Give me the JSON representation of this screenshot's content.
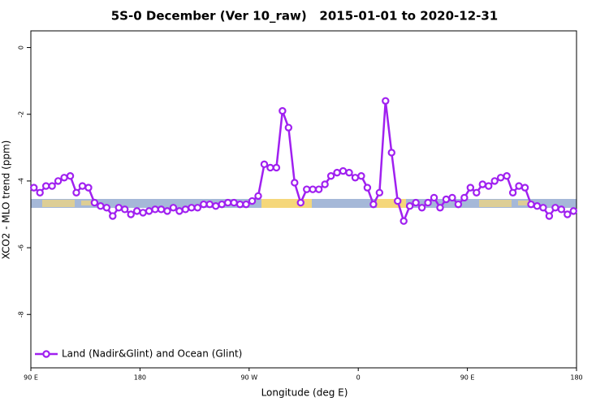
{
  "chart_data": {
    "type": "line",
    "title": "5S-0 December (Ver 10_raw)   2015-01-01 to 2020-12-31",
    "x_label": "Longitude (deg E)",
    "y_label": "XCO2 - MLO trend (ppm)",
    "x": [
      92.5,
      97.5,
      102.5,
      107.5,
      112.5,
      117.5,
      122.5,
      127.5,
      132.5,
      137.5,
      142.5,
      147.5,
      152.5,
      157.5,
      162.5,
      167.5,
      172.5,
      177.5,
      182.5,
      187.5,
      192.5,
      197.5,
      202.5,
      207.5,
      212.5,
      217.5,
      222.5,
      227.5,
      232.5,
      237.5,
      242.5,
      247.5,
      252.5,
      257.5,
      262.5,
      267.5,
      272.5,
      277.5,
      282.5,
      287.5,
      292.5,
      297.5,
      302.5,
      307.5,
      312.5,
      317.5,
      322.5,
      327.5,
      332.5,
      337.5,
      342.5,
      347.5,
      352.5,
      357.5,
      362.5,
      367.5,
      372.5,
      377.5,
      382.5,
      387.5,
      392.5,
      397.5,
      402.5,
      407.5,
      412.5,
      417.5,
      422.5,
      427.5,
      432.5,
      437.5,
      442.5,
      447.5,
      452.5,
      457.5,
      462.5,
      467.5,
      472.5,
      477.5,
      482.5,
      487.5,
      492.5,
      497.5,
      502.5,
      507.5,
      512.5,
      517.5,
      522.5,
      527.5,
      532.5,
      537.5
    ],
    "series": [
      {
        "name": "Land (Nadir&Glint) and Ocean (Glint)",
        "color": "#a020f0",
        "values": [
          -4.2,
          -4.35,
          -4.15,
          -4.15,
          -4.0,
          -3.9,
          -3.85,
          -4.35,
          -4.15,
          -4.2,
          -4.65,
          -4.75,
          -4.8,
          -5.05,
          -4.8,
          -4.85,
          -5.0,
          -4.9,
          -4.95,
          -4.9,
          -4.85,
          -4.85,
          -4.9,
          -4.8,
          -4.9,
          -4.85,
          -4.8,
          -4.8,
          -4.7,
          -4.7,
          -4.75,
          -4.7,
          -4.65,
          -4.65,
          -4.7,
          -4.7,
          -4.6,
          -4.45,
          -3.5,
          -3.6,
          -3.6,
          -1.9,
          -2.4,
          -4.05,
          -4.65,
          -4.25,
          -4.25,
          -4.25,
          -4.1,
          -3.85,
          -3.75,
          -3.7,
          -3.75,
          -3.9,
          -3.85,
          -4.2,
          -4.7,
          -4.35,
          -1.6,
          -3.15,
          -4.6,
          -5.2,
          -4.75,
          -4.65,
          -4.8,
          -4.65,
          -4.5,
          -4.8,
          -4.55,
          -4.5,
          -4.7,
          -4.5,
          -4.2,
          -4.35,
          -4.1,
          -4.15,
          -4.0,
          -3.9,
          -3.85,
          -4.35,
          -4.15,
          -4.2,
          -4.7,
          -4.75,
          -4.8,
          -5.05,
          -4.8,
          -4.85,
          -5.0,
          -4.9
        ]
      }
    ],
    "xlim": [
      90,
      540
    ],
    "xticks": [
      {
        "value": 90,
        "label": "90 E"
      },
      {
        "value": 180,
        "label": "180"
      },
      {
        "value": 270,
        "label": "90 W"
      },
      {
        "value": 360,
        "label": "0"
      },
      {
        "value": 450,
        "label": "90 E"
      },
      {
        "value": 540,
        "label": "180"
      }
    ],
    "ylim": [
      -9.6,
      0.5
    ],
    "yticks": [
      0,
      -2,
      -4,
      -6,
      -8
    ],
    "legend": "bottomleft"
  }
}
